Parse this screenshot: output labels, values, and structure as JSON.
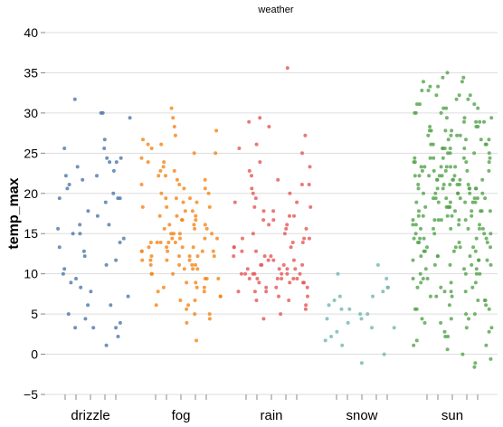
{
  "chart_data": {
    "type": "scatter",
    "title": "weather",
    "xlabel": "",
    "ylabel": "temp_max",
    "ylim": [
      -5,
      40
    ],
    "y_ticks": [
      -5,
      0,
      5,
      10,
      15,
      20,
      25,
      30,
      35,
      40
    ],
    "grid": true,
    "categories": [
      "drizzle",
      "fog",
      "rain",
      "snow",
      "sun"
    ],
    "series": [
      {
        "color": "#4c78a8",
        "values": [
          30.0,
          31.7,
          30.0,
          29.4,
          26.7,
          25.6,
          25.6,
          24.4,
          24.4,
          23.9,
          23.9,
          23.3,
          22.8,
          22.2,
          22.2,
          21.1,
          20.6,
          20.0,
          19.4,
          19.4,
          19.4,
          17.8,
          16.1,
          16.1,
          15.0,
          15.0,
          14.4,
          13.9,
          12.8,
          12.2,
          11.7,
          10.6,
          10.0,
          9.4,
          8.3,
          7.8,
          7.2,
          6.1,
          6.1,
          5.0,
          4.4,
          3.9,
          3.3,
          3.3,
          3.3,
          2.2,
          1.1,
          13.3,
          17.2,
          15.6,
          18.9,
          21.7,
          11.1,
          8.9
        ]
      },
      {
        "color": "#f58518",
        "values": [
          30.6,
          29.4,
          28.3,
          27.8,
          27.2,
          26.7,
          26.1,
          25.6,
          25.0,
          24.4,
          23.9,
          23.3,
          22.8,
          22.2,
          21.7,
          21.1,
          20.6,
          20.0,
          19.4,
          18.9,
          18.3,
          17.8,
          17.2,
          16.7,
          16.1,
          15.6,
          15.0,
          14.4,
          13.9,
          13.3,
          12.8,
          12.2,
          11.7,
          11.1,
          10.6,
          10.0,
          9.4,
          8.9,
          8.3,
          7.8,
          7.2,
          6.7,
          6.1,
          5.6,
          5.0,
          4.4,
          3.9,
          1.7,
          26.1,
          25.0,
          23.9,
          22.8,
          21.7,
          20.6,
          19.4,
          18.3,
          17.2,
          16.1,
          15.0,
          13.9,
          12.8,
          11.7,
          10.6,
          9.4,
          8.3,
          7.2,
          6.1,
          5.0,
          22.2,
          21.1,
          20.0,
          18.9,
          17.8,
          16.7,
          15.6,
          14.4,
          13.3,
          12.2,
          11.1,
          10.0,
          8.9,
          7.8,
          6.7,
          19.4,
          18.3,
          17.2,
          16.1,
          15.0,
          13.9,
          12.8,
          11.7,
          10.6,
          9.4,
          8.3,
          16.7,
          15.6,
          14.4,
          13.3,
          12.2,
          11.1,
          10.0,
          15.0,
          13.9,
          12.8,
          11.7,
          14.4,
          13.3,
          12.2,
          11.1,
          13.9,
          12.8,
          12.2
        ]
      },
      {
        "color": "#e45756",
        "values": [
          35.6,
          29.4,
          28.9,
          28.3,
          27.2,
          26.1,
          25.6,
          25.0,
          23.9,
          23.3,
          22.8,
          22.2,
          21.7,
          21.1,
          20.6,
          20.0,
          19.4,
          18.9,
          18.3,
          17.8,
          17.2,
          16.7,
          16.1,
          15.6,
          15.0,
          14.4,
          13.9,
          13.3,
          12.8,
          12.2,
          11.7,
          11.1,
          10.6,
          10.0,
          9.4,
          8.9,
          8.3,
          7.8,
          7.2,
          6.7,
          6.1,
          5.6,
          5.0,
          4.4,
          21.1,
          20.0,
          18.9,
          17.8,
          16.7,
          15.6,
          14.4,
          13.3,
          12.2,
          11.1,
          10.0,
          8.9,
          7.8,
          7.2,
          6.7,
          18.3,
          17.2,
          16.1,
          15.0,
          13.9,
          12.8,
          11.7,
          10.6,
          9.4,
          8.3,
          7.8,
          14.4,
          13.3,
          12.2,
          11.1,
          10.0,
          9.4,
          8.9,
          8.3,
          11.7,
          11.1,
          10.6,
          10.0,
          9.4,
          8.9,
          10.6,
          10.0,
          9.4,
          10.0,
          9.4,
          10.0
        ]
      },
      {
        "color": "#72b7b2",
        "values": [
          11.1,
          10.0,
          8.3,
          8.3,
          7.8,
          7.2,
          6.7,
          6.1,
          5.6,
          5.6,
          5.0,
          4.4,
          4.4,
          3.9,
          3.3,
          3.3,
          2.8,
          1.7,
          1.1,
          0.0,
          -1.1,
          7.2,
          5.0,
          2.2,
          9.4
        ]
      },
      {
        "color": "#54a24b",
        "values": [
          35.0,
          34.4,
          33.9,
          33.3,
          32.8,
          32.2,
          31.7,
          31.1,
          30.6,
          30.0,
          29.4,
          28.9,
          28.3,
          27.8,
          27.2,
          26.7,
          26.1,
          25.6,
          25.0,
          24.4,
          23.9,
          23.3,
          22.8,
          22.2,
          21.7,
          21.1,
          20.6,
          20.0,
          19.4,
          18.9,
          18.3,
          17.8,
          17.2,
          16.7,
          16.1,
          15.6,
          15.0,
          14.4,
          13.9,
          13.3,
          12.8,
          12.2,
          11.7,
          11.1,
          10.6,
          10.0,
          9.4,
          8.9,
          8.3,
          7.8,
          7.2,
          6.7,
          6.1,
          5.6,
          5.0,
          4.4,
          3.9,
          3.3,
          2.8,
          2.2,
          1.7,
          1.1,
          0.6,
          0.0,
          -0.6,
          -1.1,
          -1.6,
          34.4,
          33.3,
          32.2,
          31.1,
          30.0,
          28.9,
          27.8,
          26.7,
          25.6,
          24.4,
          23.3,
          22.2,
          21.1,
          20.0,
          18.9,
          17.8,
          16.7,
          15.6,
          14.4,
          13.3,
          12.2,
          11.1,
          10.0,
          8.9,
          7.8,
          6.7,
          5.6,
          4.4,
          3.3,
          2.2,
          1.1,
          33.9,
          32.8,
          31.7,
          30.6,
          29.4,
          28.3,
          27.2,
          26.1,
          25.0,
          23.9,
          22.8,
          21.7,
          20.6,
          19.4,
          18.3,
          17.2,
          16.1,
          15.0,
          13.9,
          12.8,
          11.7,
          10.6,
          9.4,
          8.3,
          7.2,
          6.1,
          5.0,
          3.9,
          2.8,
          32.2,
          31.1,
          30.0,
          28.9,
          27.8,
          26.7,
          25.6,
          24.4,
          23.3,
          22.2,
          21.1,
          20.0,
          18.9,
          17.8,
          16.7,
          15.6,
          14.4,
          13.3,
          12.2,
          11.1,
          10.0,
          8.9,
          7.8,
          6.7,
          5.6,
          4.4,
          30.6,
          29.4,
          28.3,
          27.2,
          26.1,
          25.0,
          23.9,
          22.8,
          21.7,
          20.6,
          19.4,
          18.3,
          17.2,
          16.1,
          15.0,
          13.9,
          12.8,
          11.7,
          10.6,
          9.4,
          8.3,
          7.2,
          28.9,
          27.8,
          26.7,
          25.6,
          24.4,
          23.3,
          22.2,
          21.1,
          20.0,
          18.9,
          17.8,
          16.7,
          15.6,
          14.4,
          13.3,
          12.2,
          11.1,
          10.0,
          27.2,
          26.1,
          25.0,
          23.9,
          22.8,
          21.7,
          20.6,
          19.4,
          18.3,
          17.2,
          16.1,
          15.0,
          13.9,
          12.8,
          11.7,
          25.6,
          24.4,
          23.3,
          22.2,
          21.1,
          20.0,
          18.9,
          17.8,
          16.7,
          15.6,
          14.4,
          13.3,
          24.4,
          23.3,
          22.2,
          21.1,
          20.0,
          18.9,
          17.8,
          16.7,
          15.6,
          22.8,
          21.7,
          20.6,
          19.4,
          18.3,
          17.2,
          21.7,
          20.6,
          19.4,
          20.6,
          19.4
        ]
      }
    ]
  }
}
